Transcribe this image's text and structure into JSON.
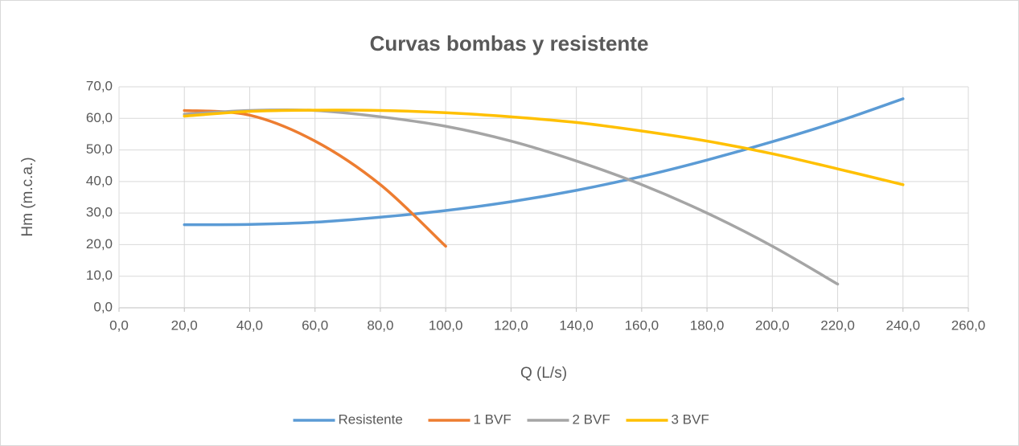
{
  "chart_data": {
    "type": "line",
    "title": "Curvas bombas y resistente",
    "xlabel": "Q (L/s)",
    "ylabel": "Hm (m.c.a.)",
    "series": [
      {
        "name": "Resistente",
        "color": "#5b9bd5",
        "x": [
          20,
          40,
          60,
          80,
          100,
          120,
          140,
          160,
          180,
          200,
          220,
          240
        ],
        "values": [
          26.3,
          26.4,
          27.1,
          28.7,
          30.8,
          33.6,
          37.2,
          41.6,
          46.8,
          52.6,
          59.0,
          66.2
        ]
      },
      {
        "name": "1 BVF",
        "color": "#ed7d31",
        "x": [
          20,
          40,
          60,
          80,
          100
        ],
        "values": [
          62.5,
          61.0,
          52.8,
          39.0,
          19.5
        ]
      },
      {
        "name": "2 BVF",
        "color": "#a5a5a5",
        "x": [
          20,
          40,
          60,
          80,
          100,
          120,
          140,
          160,
          180,
          200,
          220
        ],
        "values": [
          61.3,
          62.5,
          62.5,
          60.5,
          57.5,
          52.8,
          46.5,
          39.0,
          30.0,
          19.5,
          7.5
        ]
      },
      {
        "name": "3 BVF",
        "color": "#ffc000",
        "x": [
          20,
          40,
          60,
          80,
          100,
          120,
          140,
          160,
          180,
          200,
          220,
          240
        ],
        "values": [
          60.7,
          62.2,
          62.6,
          62.5,
          61.8,
          60.5,
          58.7,
          56.0,
          52.8,
          48.8,
          44.0,
          39.0
        ]
      }
    ],
    "xlim": [
      0,
      260
    ],
    "xticks": [
      {
        "value": 0,
        "label": "0,0"
      },
      {
        "value": 20,
        "label": "20,0"
      },
      {
        "value": 40,
        "label": "40,0"
      },
      {
        "value": 60,
        "label": "60,0"
      },
      {
        "value": 80,
        "label": "80,0"
      },
      {
        "value": 100,
        "label": "100,0"
      },
      {
        "value": 120,
        "label": "120,0"
      },
      {
        "value": 140,
        "label": "140,0"
      },
      {
        "value": 160,
        "label": "160,0"
      },
      {
        "value": 180,
        "label": "180,0"
      },
      {
        "value": 200,
        "label": "200,0"
      },
      {
        "value": 220,
        "label": "220,0"
      },
      {
        "value": 240,
        "label": "240,0"
      },
      {
        "value": 260,
        "label": "260,0"
      }
    ],
    "ylim": [
      0,
      70
    ],
    "yticks": [
      {
        "value": 0,
        "label": "0,0"
      },
      {
        "value": 10,
        "label": "10,0"
      },
      {
        "value": 20,
        "label": "20,0"
      },
      {
        "value": 30,
        "label": "30,0"
      },
      {
        "value": 40,
        "label": "40,0"
      },
      {
        "value": 50,
        "label": "50,0"
      },
      {
        "value": 60,
        "label": "60,0"
      },
      {
        "value": 70,
        "label": "70,0"
      }
    ],
    "grid": true,
    "legend": "bottom"
  }
}
